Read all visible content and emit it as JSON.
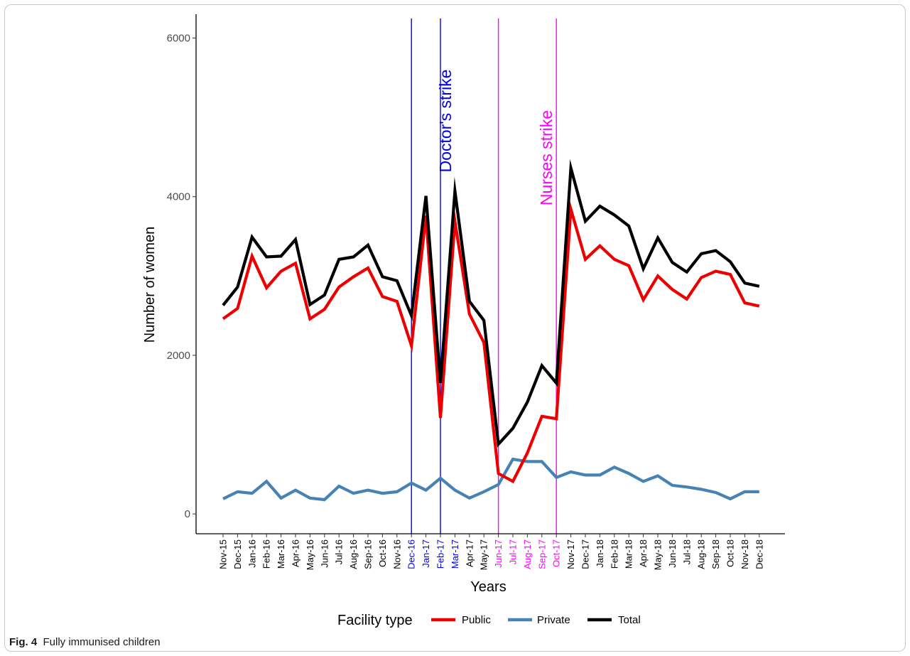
{
  "caption": {
    "label": "Fig. 4",
    "text": "Fully immunised children"
  },
  "chart_data": {
    "type": "line",
    "title": "",
    "xlabel": "Years",
    "ylabel": "Number of women",
    "ylim": [
      -250,
      6300
    ],
    "yticks": [
      0,
      2000,
      4000,
      6000
    ],
    "grid": false,
    "legend_placement": "bottom",
    "legend_title": "Facility type",
    "categories": [
      "Nov-15",
      "Dec-15",
      "Jan-16",
      "Feb-16",
      "Mar-16",
      "Apr-16",
      "May-16",
      "Jun-16",
      "Jul-16",
      "Aug-16",
      "Sep-16",
      "Oct-16",
      "Nov-16",
      "Dec-16",
      "Jan-17",
      "Feb-17",
      "Mar-17",
      "Apr-17",
      "May-17",
      "Jun-17",
      "Jul-17",
      "Aug-17",
      "Sep-17",
      "Oct-17",
      "Nov-17",
      "Dec-17",
      "Jan-18",
      "Feb-18",
      "Mar-18",
      "Apr-18",
      "May-18",
      "Jun-18",
      "Jul-18",
      "Aug-18",
      "Sep-18",
      "Oct-18",
      "Nov-18",
      "Dec-18"
    ],
    "series": [
      {
        "name": "Public",
        "color": "#ee0000",
        "values": [
          2460,
          2590,
          3250,
          2850,
          3060,
          3160,
          2460,
          2580,
          2860,
          2990,
          3100,
          2740,
          2680,
          2120,
          3760,
          1210,
          3690,
          2520,
          2160,
          510,
          410,
          770,
          1230,
          1200,
          3840,
          3210,
          3380,
          3210,
          3130,
          2700,
          3000,
          2830,
          2710,
          2980,
          3060,
          3020,
          2660,
          2620
        ]
      },
      {
        "name": "Private",
        "color": "#4682b4",
        "values": [
          190,
          280,
          260,
          410,
          200,
          300,
          200,
          180,
          350,
          260,
          300,
          260,
          280,
          390,
          300,
          450,
          300,
          200,
          280,
          370,
          690,
          660,
          660,
          460,
          530,
          490,
          490,
          590,
          510,
          410,
          480,
          360,
          340,
          310,
          270,
          190,
          280,
          280
        ]
      },
      {
        "name": "Total",
        "color": "#000000",
        "values": [
          2630,
          2860,
          3490,
          3240,
          3250,
          3460,
          2640,
          2760,
          3210,
          3240,
          3390,
          2990,
          2940,
          2500,
          4010,
          1650,
          4070,
          2680,
          2440,
          880,
          1080,
          1410,
          1870,
          1650,
          4360,
          3690,
          3880,
          3770,
          3630,
          3090,
          3480,
          3170,
          3050,
          3280,
          3320,
          3180,
          2910,
          2870
        ]
      }
    ],
    "annotations": [
      {
        "label": "Doctor's strike",
        "color": "#0000ee",
        "start": "Dec-16",
        "end": "Feb-17"
      },
      {
        "label": "Nurses strike",
        "color": "#ff00ff",
        "start": "Jun-17",
        "end": "Oct-17"
      }
    ],
    "highlighted_ticks": [
      {
        "labels": [
          "Dec-16",
          "Jan-17",
          "Feb-17",
          "Mar-17"
        ],
        "color": "#0000ee"
      },
      {
        "labels": [
          "Jun-17",
          "Jul-17",
          "Aug-17",
          "Sep-17",
          "Oct-17"
        ],
        "color": "#ff00ff"
      }
    ]
  }
}
